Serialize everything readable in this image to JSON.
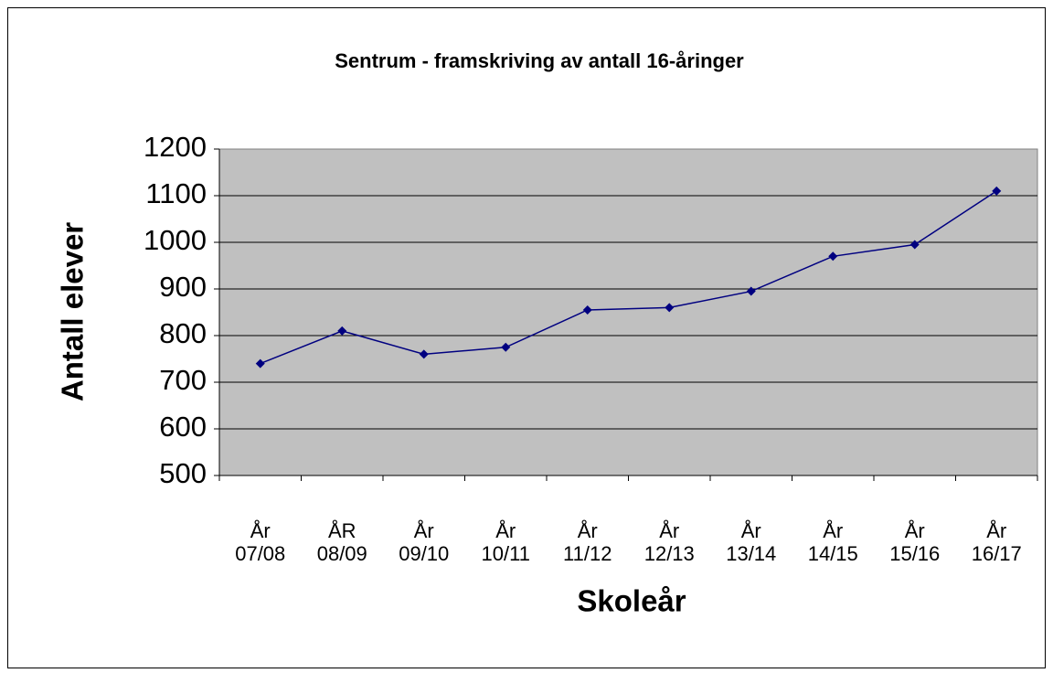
{
  "chart_data": {
    "type": "line",
    "title": "Sentrum - framskriving av antall 16-åringer",
    "x_label": "Skoleår",
    "y_label": "Antall elever",
    "categories": [
      "År 07/08",
      "ÅR 08/09",
      "År 09/10",
      "År 10/11",
      "År 11/12",
      "År 12/13",
      "År 13/14",
      "År 14/15",
      "År 15/16",
      "År 16/17"
    ],
    "series": [
      {
        "color": "#000080",
        "values": [
          740,
          810,
          760,
          775,
          855,
          860,
          895,
          970,
          995,
          1110
        ]
      }
    ],
    "ylim": [
      500,
      1200
    ],
    "yticks": [
      500,
      600,
      700,
      800,
      900,
      1000,
      1100,
      1200
    ],
    "grid": true
  }
}
